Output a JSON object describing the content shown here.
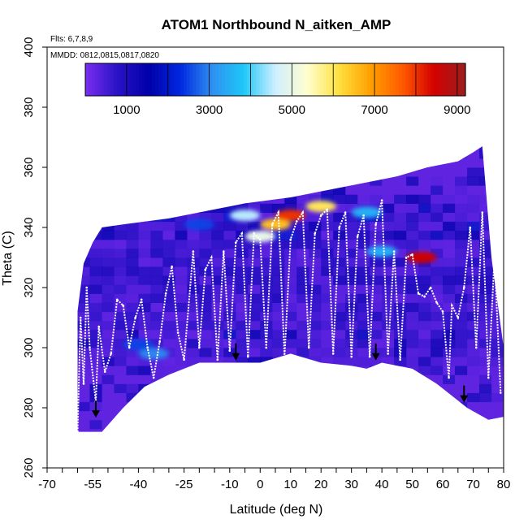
{
  "chart_data": {
    "type": "heatmap",
    "title": "ATOM1 Northbound N_aitken_AMP",
    "subtitle_flights": "Flts: 6,7,8,9",
    "subtitle_dates": "MMDD: 0812,0815,0817,0820",
    "xlabel": "Latitude (deg N)",
    "ylabel": "Theta (C)",
    "xlim": [
      -70,
      80
    ],
    "ylim": [
      260,
      400
    ],
    "x_ticks": [
      -70,
      -55,
      -40,
      -25,
      -10,
      0,
      10,
      20,
      30,
      40,
      50,
      60,
      70,
      80
    ],
    "y_ticks": [
      260,
      280,
      300,
      320,
      340,
      360,
      380,
      400
    ],
    "colorbar": {
      "min": 0,
      "max": 9200,
      "ticks": [
        1000,
        3000,
        5000,
        7000,
        9000
      ],
      "colors": [
        "#7b2df0",
        "#2a13c6",
        "#0000a8",
        "#0028e0",
        "#2f8ff0",
        "#1ec8f8",
        "#cfeeff",
        "#ffffd0",
        "#ffe040",
        "#ffa000",
        "#ff5a00",
        "#d40000",
        "#9a1f1f"
      ]
    },
    "data_domain_lower": [
      [
        -60,
        272
      ],
      [
        -52,
        272
      ],
      [
        -45,
        280
      ],
      [
        -38,
        287
      ],
      [
        -30,
        291
      ],
      [
        -20,
        295
      ],
      [
        -10,
        295
      ],
      [
        0,
        295
      ],
      [
        10,
        298
      ],
      [
        20,
        295
      ],
      [
        30,
        294
      ],
      [
        35,
        293
      ],
      [
        40,
        295
      ],
      [
        50,
        293
      ],
      [
        58,
        288
      ],
      [
        68,
        280
      ],
      [
        75,
        276
      ],
      [
        80,
        277
      ]
    ],
    "data_domain_upper": [
      [
        -60,
        312
      ],
      [
        -58,
        328
      ],
      [
        -55,
        335
      ],
      [
        -52,
        340
      ],
      [
        -45,
        341
      ],
      [
        -30,
        343
      ],
      [
        -20,
        345
      ],
      [
        -5,
        348
      ],
      [
        10,
        350
      ],
      [
        30,
        354
      ],
      [
        45,
        357
      ],
      [
        55,
        360
      ],
      [
        65,
        362
      ],
      [
        70,
        365
      ],
      [
        73,
        367
      ],
      [
        76,
        330
      ],
      [
        80,
        300
      ]
    ],
    "hotspots": [
      {
        "lat": 5,
        "theta": 341,
        "value": 6500
      },
      {
        "lat": 10,
        "theta": 344,
        "value": 8000
      },
      {
        "lat": 20,
        "theta": 347,
        "value": 6000
      },
      {
        "lat": 53,
        "theta": 330,
        "value": 8500
      },
      {
        "lat": 0,
        "theta": 337,
        "value": 5000
      },
      {
        "lat": -5,
        "theta": 344,
        "value": 4500
      },
      {
        "lat": -35,
        "theta": 298,
        "value": 3000
      },
      {
        "lat": -40,
        "theta": 301,
        "value": 2500
      },
      {
        "lat": 40,
        "theta": 332,
        "value": 3500
      },
      {
        "lat": 35,
        "theta": 345,
        "value": 3500
      },
      {
        "lat": -20,
        "theta": 341,
        "value": 2500
      }
    ],
    "flight_track": [
      [
        -60,
        272
      ],
      [
        -59,
        310
      ],
      [
        -58,
        288
      ],
      [
        -57,
        320
      ],
      [
        -56,
        300
      ],
      [
        -54,
        282
      ],
      [
        -53,
        307
      ],
      [
        -51,
        292
      ],
      [
        -49,
        298
      ],
      [
        -47,
        316
      ],
      [
        -45,
        314
      ],
      [
        -43,
        300
      ],
      [
        -41,
        310
      ],
      [
        -39,
        316
      ],
      [
        -37,
        300
      ],
      [
        -35,
        290
      ],
      [
        -33,
        302
      ],
      [
        -31,
        318
      ],
      [
        -29,
        327
      ],
      [
        -27,
        305
      ],
      [
        -25,
        296
      ],
      [
        -22,
        332
      ],
      [
        -20,
        300
      ],
      [
        -18,
        326
      ],
      [
        -16,
        330
      ],
      [
        -14,
        296
      ],
      [
        -12,
        332
      ],
      [
        -10,
        299
      ],
      [
        -8,
        335
      ],
      [
        -6,
        338
      ],
      [
        -4,
        297
      ],
      [
        -2,
        338
      ],
      [
        0,
        336
      ],
      [
        2,
        300
      ],
      [
        4,
        341
      ],
      [
        6,
        345
      ],
      [
        8,
        297
      ],
      [
        10,
        336
      ],
      [
        12,
        342
      ],
      [
        14,
        345
      ],
      [
        16,
        300
      ],
      [
        18,
        338
      ],
      [
        20,
        344
      ],
      [
        22,
        346
      ],
      [
        24,
        298
      ],
      [
        26,
        340
      ],
      [
        28,
        345
      ],
      [
        30,
        297
      ],
      [
        32,
        337
      ],
      [
        34,
        344
      ],
      [
        36,
        297
      ],
      [
        38,
        341
      ],
      [
        40,
        349
      ],
      [
        42,
        298
      ],
      [
        44,
        332
      ],
      [
        46,
        296
      ],
      [
        48,
        330
      ],
      [
        50,
        331
      ],
      [
        52,
        318
      ],
      [
        54,
        317
      ],
      [
        56,
        320
      ],
      [
        58,
        315
      ],
      [
        60,
        312
      ],
      [
        62,
        290
      ],
      [
        63,
        314
      ],
      [
        65,
        310
      ],
      [
        67,
        320
      ],
      [
        69,
        340
      ],
      [
        71,
        300
      ],
      [
        73,
        345
      ],
      [
        75,
        290
      ],
      [
        77,
        330
      ],
      [
        79,
        285
      ]
    ],
    "arrows": [
      [
        -54,
        277
      ],
      [
        -8,
        296
      ],
      [
        38,
        296
      ],
      [
        67,
        282
      ]
    ],
    "grid": false,
    "legend": "colorbar-top"
  }
}
